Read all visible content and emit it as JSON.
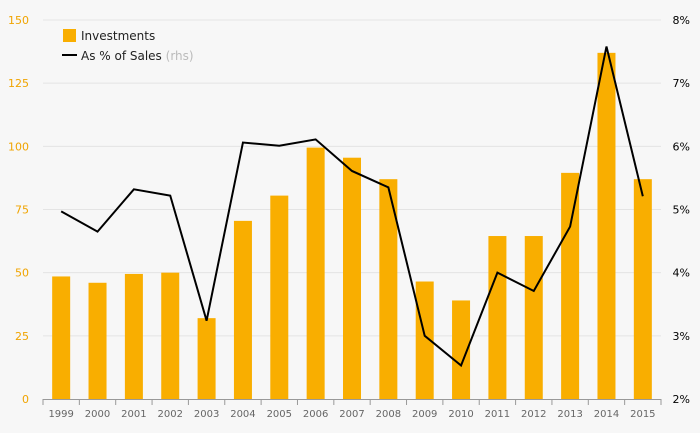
{
  "chart_data": {
    "type": "bar",
    "categories": [
      "1999",
      "2000",
      "2001",
      "2002",
      "2003",
      "2004",
      "2005",
      "2006",
      "2007",
      "2008",
      "2009",
      "2010",
      "2011",
      "2012",
      "2013",
      "2014",
      "2015"
    ],
    "series": [
      {
        "name": "Investments",
        "type": "bar",
        "axis": "left",
        "values": [
          48.5,
          46,
          49.5,
          50,
          32,
          70.5,
          80.5,
          99.5,
          95.5,
          87,
          46.5,
          39,
          64.5,
          64.5,
          89.5,
          137,
          87
        ]
      },
      {
        "name": "As % of Sales",
        "name_suffix": "(rhs)",
        "type": "line",
        "axis": "right",
        "values": [
          4.97,
          4.65,
          5.32,
          5.22,
          3.24,
          6.06,
          6.01,
          6.11,
          5.61,
          5.35,
          3.0,
          2.53,
          4.0,
          3.71,
          4.73,
          7.58,
          5.21
        ]
      }
    ],
    "y_left": {
      "range": [
        0,
        150
      ],
      "ticks": [
        0,
        25,
        50,
        75,
        100,
        125,
        150
      ],
      "tick_labels": [
        "0",
        "25",
        "50",
        "75",
        "100",
        "125",
        "150"
      ]
    },
    "y_right": {
      "range": [
        2,
        8
      ],
      "ticks": [
        2,
        3,
        4,
        5,
        6,
        7,
        8
      ],
      "tick_labels": [
        "2%",
        "3%",
        "4%",
        "5%",
        "6%",
        "7%",
        "8%"
      ]
    },
    "grid": true,
    "legend": "top-left",
    "colors": {
      "bar": "#f9ae00",
      "line": "#000000",
      "left_axis_text": "#f0a400",
      "right_axis_text": "#000000",
      "x_axis_text": "#666666",
      "grid": "#e4e4e4",
      "legend_suffix": "#bbbbbb"
    },
    "xlabel": "",
    "ylabel": "",
    "title": ""
  }
}
